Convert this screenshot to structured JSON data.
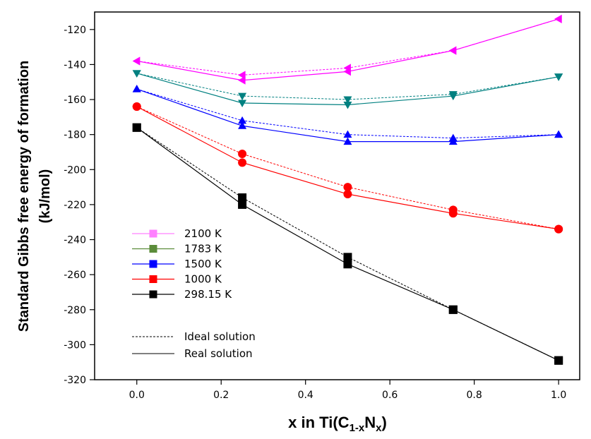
{
  "chart_data": {
    "type": "line",
    "x": [
      0.0,
      0.25,
      0.5,
      0.75,
      1.0
    ],
    "xlim": [
      -0.1,
      1.05
    ],
    "ylim": [
      -320,
      -110
    ],
    "xticks": [
      "0.0",
      "0.2",
      "0.4",
      "0.6",
      "0.8",
      "1.0"
    ],
    "yticks": [
      "-120",
      "-140",
      "-160",
      "-180",
      "-200",
      "-220",
      "-240",
      "-260",
      "-280",
      "-300",
      "-320"
    ],
    "ylabel_line1": "Standard Gibbs free energy of formation",
    "ylabel_line2": "(kJ/mol)",
    "xlabel_main": "x in Ti(C",
    "xlabel_sub1": "1-x",
    "xlabel_mid": "N",
    "xlabel_sub2": "x",
    "xlabel_end": ")",
    "legend_placement": "bottom-left",
    "series": [
      {
        "name": "2100 K",
        "color": "#ff00ff",
        "legend_color": "#ff80ff",
        "marker": "triangle-left",
        "ideal": [
          -138,
          -146,
          -142,
          -132,
          -114
        ],
        "real": [
          -138,
          -149,
          -144,
          -132,
          -114
        ]
      },
      {
        "name": "1783 K",
        "color": "#008080",
        "legend_color": "#5b8c3a",
        "marker": "triangle-down",
        "ideal": [
          -145,
          -158,
          -160,
          -157,
          -147
        ],
        "real": [
          -145,
          -162,
          -163,
          -158,
          -147
        ]
      },
      {
        "name": "1500 K",
        "color": "#0000ff",
        "legend_color": "#0000ff",
        "marker": "triangle-up",
        "ideal": [
          -154,
          -172,
          -180,
          -182,
          -180
        ],
        "real": [
          -154,
          -175,
          -184,
          -184,
          -180
        ]
      },
      {
        "name": "1000 K",
        "color": "#ff0000",
        "legend_color": "#ff0000",
        "marker": "circle",
        "ideal": [
          -164,
          -191,
          -210,
          -223,
          -234
        ],
        "real": [
          -164,
          -196,
          -214,
          -225,
          -234
        ]
      },
      {
        "name": "298.15 K",
        "color": "#000000",
        "legend_color": "#000000",
        "marker": "square",
        "ideal": [
          -176,
          -216,
          -250,
          -280,
          -309
        ],
        "real": [
          -176,
          -220,
          -254,
          -280,
          -309
        ]
      }
    ],
    "line_legend": [
      {
        "label": "Ideal solution",
        "style": "dashed"
      },
      {
        "label": "Real solution",
        "style": "solid"
      }
    ]
  }
}
